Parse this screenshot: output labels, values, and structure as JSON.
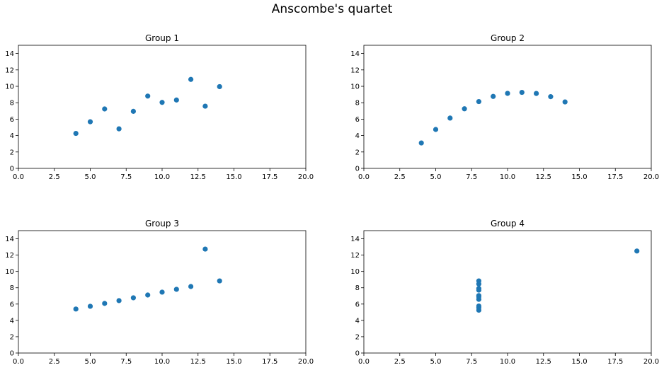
{
  "suptitle": "Anscombe's quartet",
  "chart_data": [
    {
      "type": "scatter",
      "title": "Group 1",
      "xlim": [
        0,
        20
      ],
      "ylim": [
        0,
        15
      ],
      "xticks": [
        "0.0",
        "2.5",
        "5.0",
        "7.5",
        "10.0",
        "12.5",
        "15.0",
        "17.5",
        "20.0"
      ],
      "yticks": [
        "0",
        "2",
        "4",
        "6",
        "8",
        "10",
        "12",
        "14"
      ],
      "color": "#1f77b4",
      "x": [
        10,
        8,
        13,
        9,
        11,
        14,
        6,
        4,
        12,
        7,
        5
      ],
      "y": [
        8.04,
        6.95,
        7.58,
        8.81,
        8.33,
        9.96,
        7.24,
        4.26,
        10.84,
        4.82,
        5.68
      ]
    },
    {
      "type": "scatter",
      "title": "Group 2",
      "xlim": [
        0,
        20
      ],
      "ylim": [
        0,
        15
      ],
      "xticks": [
        "0.0",
        "2.5",
        "5.0",
        "7.5",
        "10.0",
        "12.5",
        "15.0",
        "17.5",
        "20.0"
      ],
      "yticks": [
        "0",
        "2",
        "4",
        "6",
        "8",
        "10",
        "12",
        "14"
      ],
      "color": "#1f77b4",
      "x": [
        10,
        8,
        13,
        9,
        11,
        14,
        6,
        4,
        12,
        7,
        5
      ],
      "y": [
        9.14,
        8.14,
        8.74,
        8.77,
        9.26,
        8.1,
        6.13,
        3.1,
        9.13,
        7.26,
        4.74
      ]
    },
    {
      "type": "scatter",
      "title": "Group 3",
      "xlim": [
        0,
        20
      ],
      "ylim": [
        0,
        15
      ],
      "xticks": [
        "0.0",
        "2.5",
        "5.0",
        "7.5",
        "10.0",
        "12.5",
        "15.0",
        "17.5",
        "20.0"
      ],
      "yticks": [
        "0",
        "2",
        "4",
        "6",
        "8",
        "10",
        "12",
        "14"
      ],
      "color": "#1f77b4",
      "x": [
        10,
        8,
        13,
        9,
        11,
        14,
        6,
        4,
        12,
        7,
        5
      ],
      "y": [
        7.46,
        6.77,
        12.74,
        7.11,
        7.81,
        8.84,
        6.08,
        5.39,
        8.15,
        6.42,
        5.73
      ]
    },
    {
      "type": "scatter",
      "title": "Group 4",
      "xlim": [
        0,
        20
      ],
      "ylim": [
        0,
        15
      ],
      "xticks": [
        "0.0",
        "2.5",
        "5.0",
        "7.5",
        "10.0",
        "12.5",
        "15.0",
        "17.5",
        "20.0"
      ],
      "yticks": [
        "0",
        "2",
        "4",
        "6",
        "8",
        "10",
        "12",
        "14"
      ],
      "color": "#1f77b4",
      "x": [
        8,
        8,
        8,
        8,
        8,
        8,
        8,
        19,
        8,
        8,
        8
      ],
      "y": [
        6.58,
        5.76,
        7.71,
        8.84,
        8.47,
        7.04,
        5.25,
        12.5,
        5.56,
        7.91,
        6.89
      ]
    }
  ]
}
